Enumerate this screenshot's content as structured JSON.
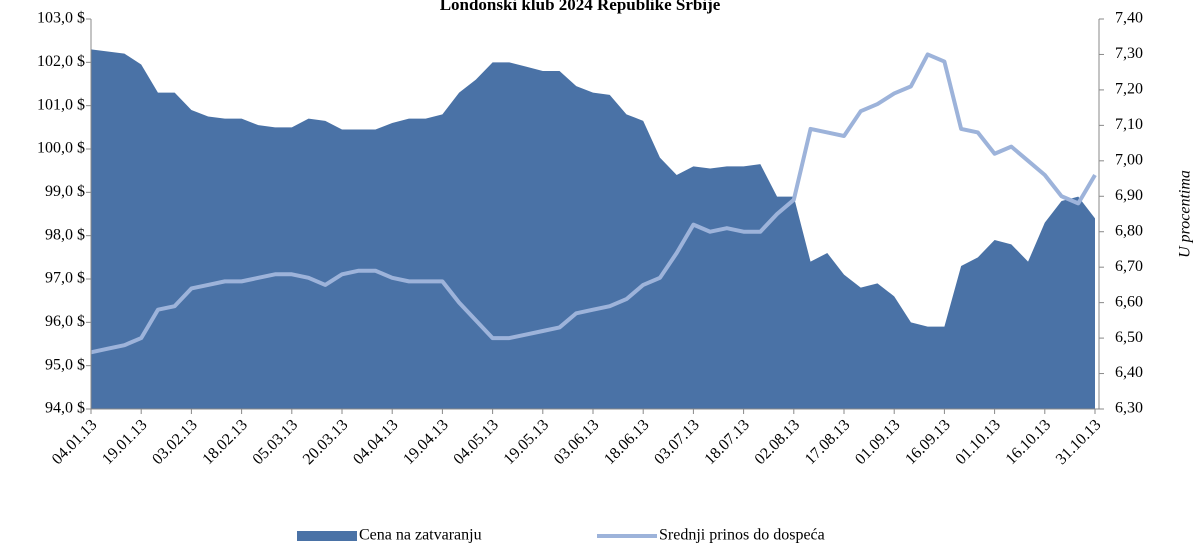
{
  "chart_data": {
    "type": "area",
    "title": "Londonski klub 2024 Republike Srbije",
    "y2label": "U procentima",
    "categories": [
      "04.01.13",
      null,
      null,
      "19.01.13",
      null,
      null,
      "03.02.13",
      null,
      null,
      "18.02.13",
      null,
      null,
      "05.03.13",
      null,
      null,
      "20.03.13",
      null,
      null,
      "04.04.13",
      null,
      null,
      "19.04.13",
      null,
      null,
      "04.05.13",
      null,
      null,
      "19.05.13",
      null,
      null,
      "03.06.13",
      null,
      null,
      "18.06.13",
      null,
      null,
      "03.07.13",
      null,
      null,
      "18.07.13",
      null,
      null,
      "02.08.13",
      null,
      null,
      "17.08.13",
      null,
      null,
      "01.09.13",
      null,
      null,
      "16.09.13",
      null,
      null,
      "01.10.13",
      null,
      null,
      "16.10.13",
      null,
      null,
      "31.10.13"
    ],
    "series": [
      {
        "name": "Cena na zatvaranju",
        "type": "area",
        "color": "#4a72a6",
        "values": [
          102.3,
          102.25,
          102.2,
          101.95,
          101.3,
          101.3,
          100.9,
          100.75,
          100.7,
          100.7,
          100.55,
          100.5,
          100.5,
          100.7,
          100.65,
          100.45,
          100.45,
          100.45,
          100.6,
          100.7,
          100.7,
          100.8,
          101.3,
          101.6,
          102.0,
          102.0,
          101.9,
          101.8,
          101.8,
          101.45,
          101.3,
          101.25,
          100.8,
          100.65,
          99.8,
          99.4,
          99.6,
          99.55,
          99.6,
          99.6,
          99.65,
          98.9,
          98.9,
          97.4,
          97.6,
          97.1,
          96.8,
          96.9,
          96.6,
          96.0,
          95.9,
          95.9,
          97.3,
          97.5,
          97.9,
          97.8,
          97.4,
          98.3,
          98.8,
          98.9,
          98.4
        ]
      },
      {
        "name": "Srednji prinos do dospeća",
        "type": "line",
        "axis": "y2",
        "color": "#9db3da",
        "values": [
          6.46,
          6.47,
          6.48,
          6.5,
          6.58,
          6.59,
          6.64,
          6.65,
          6.66,
          6.66,
          6.67,
          6.68,
          6.68,
          6.67,
          6.65,
          6.68,
          6.69,
          6.69,
          6.67,
          6.66,
          6.66,
          6.66,
          6.6,
          6.55,
          6.5,
          6.5,
          6.51,
          6.52,
          6.53,
          6.57,
          6.58,
          6.59,
          6.61,
          6.65,
          6.67,
          6.74,
          6.82,
          6.8,
          6.81,
          6.8,
          6.8,
          6.85,
          6.89,
          7.09,
          7.08,
          7.07,
          7.14,
          7.16,
          7.19,
          7.21,
          7.3,
          7.28,
          7.09,
          7.08,
          7.02,
          7.04,
          7.0,
          6.96,
          6.9,
          6.88,
          6.96
        ]
      }
    ],
    "ylim": [
      94,
      103
    ],
    "yticks": [
      {
        "value": 94,
        "label": "94,0 $"
      },
      {
        "value": 95,
        "label": "95,0 $"
      },
      {
        "value": 96,
        "label": "96,0 $"
      },
      {
        "value": 97,
        "label": "97,0 $"
      },
      {
        "value": 98,
        "label": "98,0 $"
      },
      {
        "value": 99,
        "label": "99,0 $"
      },
      {
        "value": 100,
        "label": "100,0 $"
      },
      {
        "value": 101,
        "label": "101,0 $"
      },
      {
        "value": 102,
        "label": "102,0 $"
      },
      {
        "value": 103,
        "label": "103,0 $"
      }
    ],
    "y2lim": [
      6.3,
      7.4
    ],
    "y2ticks": [
      {
        "value": 6.3,
        "label": "6,30"
      },
      {
        "value": 6.4,
        "label": "6,40"
      },
      {
        "value": 6.5,
        "label": "6,50"
      },
      {
        "value": 6.6,
        "label": "6,60"
      },
      {
        "value": 6.7,
        "label": "6,70"
      },
      {
        "value": 6.8,
        "label": "6,80"
      },
      {
        "value": 6.9,
        "label": "6,90"
      },
      {
        "value": 7.0,
        "label": "7,00"
      },
      {
        "value": 7.1,
        "label": "7,10"
      },
      {
        "value": 7.2,
        "label": "7,20"
      },
      {
        "value": 7.3,
        "label": "7,30"
      },
      {
        "value": 7.4,
        "label": "7,40"
      }
    ],
    "legend": "bottom"
  }
}
